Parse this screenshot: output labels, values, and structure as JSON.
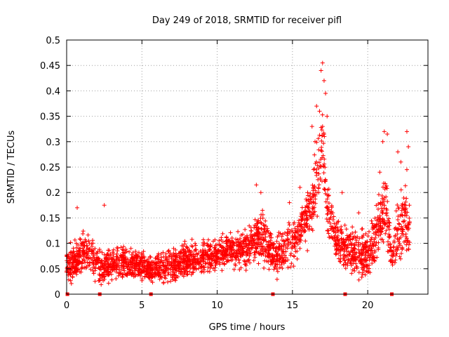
{
  "chart_data": {
    "type": "scatter",
    "title": "Day 249 of 2018, SRMTID for receiver pifl",
    "xlabel": "GPS time / hours",
    "ylabel": "SRMTID / TECUs",
    "xlim": [
      0,
      24
    ],
    "ylim": [
      0,
      0.5
    ],
    "xticks": [
      0,
      5,
      10,
      15,
      20
    ],
    "yticks": [
      0,
      0.05,
      0.1,
      0.15,
      0.2,
      0.25,
      0.3,
      0.35,
      0.4,
      0.45,
      0.5
    ],
    "grid": true,
    "marker": "+",
    "series": [
      {
        "name": "SRMTID",
        "color": "#ff0000",
        "envelope": [
          {
            "hour": 0.0,
            "mean": 0.055,
            "spread": 0.045
          },
          {
            "hour": 0.5,
            "mean": 0.065,
            "spread": 0.05
          },
          {
            "hour": 1.0,
            "mean": 0.075,
            "spread": 0.055
          },
          {
            "hour": 1.5,
            "mean": 0.08,
            "spread": 0.06
          },
          {
            "hour": 2.2,
            "mean": 0.05,
            "spread": 0.045
          },
          {
            "hour": 3.0,
            "mean": 0.06,
            "spread": 0.045
          },
          {
            "hour": 4.0,
            "mean": 0.06,
            "spread": 0.045
          },
          {
            "hour": 5.0,
            "mean": 0.058,
            "spread": 0.04
          },
          {
            "hour": 5.7,
            "mean": 0.045,
            "spread": 0.035
          },
          {
            "hour": 6.5,
            "mean": 0.055,
            "spread": 0.045
          },
          {
            "hour": 7.5,
            "mean": 0.06,
            "spread": 0.045
          },
          {
            "hour": 8.5,
            "mean": 0.07,
            "spread": 0.05
          },
          {
            "hour": 9.5,
            "mean": 0.075,
            "spread": 0.045
          },
          {
            "hour": 10.5,
            "mean": 0.085,
            "spread": 0.045
          },
          {
            "hour": 11.5,
            "mean": 0.085,
            "spread": 0.045
          },
          {
            "hour": 12.5,
            "mean": 0.1,
            "spread": 0.06
          },
          {
            "hour": 13.0,
            "mean": 0.12,
            "spread": 0.07
          },
          {
            "hour": 13.8,
            "mean": 0.07,
            "spread": 0.05
          },
          {
            "hour": 14.5,
            "mean": 0.09,
            "spread": 0.06
          },
          {
            "hour": 15.2,
            "mean": 0.11,
            "spread": 0.06
          },
          {
            "hour": 15.8,
            "mean": 0.14,
            "spread": 0.07
          },
          {
            "hour": 16.5,
            "mean": 0.2,
            "spread": 0.09
          },
          {
            "hour": 17.0,
            "mean": 0.3,
            "spread": 0.12
          },
          {
            "hour": 17.3,
            "mean": 0.18,
            "spread": 0.08
          },
          {
            "hour": 17.8,
            "mean": 0.12,
            "spread": 0.07
          },
          {
            "hour": 18.5,
            "mean": 0.09,
            "spread": 0.06
          },
          {
            "hour": 19.3,
            "mean": 0.08,
            "spread": 0.06
          },
          {
            "hour": 20.0,
            "mean": 0.08,
            "spread": 0.06
          },
          {
            "hour": 20.7,
            "mean": 0.12,
            "spread": 0.08
          },
          {
            "hour": 21.2,
            "mean": 0.18,
            "spread": 0.1
          },
          {
            "hour": 21.6,
            "mean": 0.07,
            "spread": 0.05
          },
          {
            "hour": 22.0,
            "mean": 0.12,
            "spread": 0.08
          },
          {
            "hour": 22.5,
            "mean": 0.15,
            "spread": 0.1
          },
          {
            "hour": 22.8,
            "mean": 0.12,
            "spread": 0.08
          }
        ],
        "extra_points": [
          {
            "hour": 0.7,
            "value": 0.17
          },
          {
            "hour": 2.5,
            "value": 0.175
          },
          {
            "hour": 12.6,
            "value": 0.215
          },
          {
            "hour": 12.9,
            "value": 0.2
          },
          {
            "hour": 14.8,
            "value": 0.18
          },
          {
            "hour": 15.5,
            "value": 0.21
          },
          {
            "hour": 16.3,
            "value": 0.33
          },
          {
            "hour": 16.6,
            "value": 0.37
          },
          {
            "hour": 16.8,
            "value": 0.36
          },
          {
            "hour": 16.9,
            "value": 0.44
          },
          {
            "hour": 17.0,
            "value": 0.455
          },
          {
            "hour": 17.1,
            "value": 0.42
          },
          {
            "hour": 17.2,
            "value": 0.395
          },
          {
            "hour": 17.3,
            "value": 0.35
          },
          {
            "hour": 17.0,
            "value": 0.33
          },
          {
            "hour": 16.5,
            "value": 0.3
          },
          {
            "hour": 21.1,
            "value": 0.32
          },
          {
            "hour": 21.3,
            "value": 0.315
          },
          {
            "hour": 21.0,
            "value": 0.3
          },
          {
            "hour": 22.0,
            "value": 0.28
          },
          {
            "hour": 22.2,
            "value": 0.26
          },
          {
            "hour": 22.6,
            "value": 0.32
          },
          {
            "hour": 22.7,
            "value": 0.29
          },
          {
            "hour": 22.6,
            "value": 0.245
          },
          {
            "hour": 20.8,
            "value": 0.24
          },
          {
            "hour": 19.4,
            "value": 0.16
          },
          {
            "hour": 18.3,
            "value": 0.2
          }
        ],
        "zero_points": [
          0.05,
          2.2,
          5.6,
          13.7,
          18.5,
          21.6
        ]
      }
    ]
  }
}
